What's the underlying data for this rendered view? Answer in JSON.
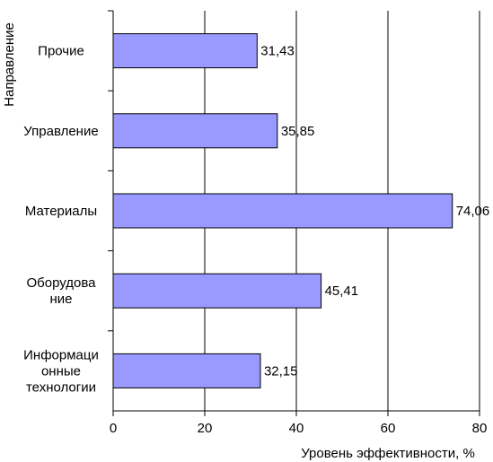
{
  "chart_data": {
    "type": "bar",
    "orientation": "horizontal",
    "categories": [
      "Информационные технологии",
      "Оборудование",
      "Материалы",
      "Управление",
      "Прочие"
    ],
    "category_labels": [
      [
        "Информаци",
        "онные",
        "технологии"
      ],
      [
        "Оборудова",
        "ние"
      ],
      [
        "Материалы"
      ],
      [
        "Управление"
      ],
      [
        "Прочие"
      ]
    ],
    "values": [
      32.15,
      45.41,
      74.06,
      35.85,
      31.43
    ],
    "data_labels": [
      "32,15",
      "45,41",
      "74,06",
      "35,85",
      "31,43"
    ],
    "xlim": [
      0,
      80
    ],
    "x_ticks": [
      0,
      20,
      40,
      60,
      80
    ],
    "x_tick_labels": [
      "0",
      "20",
      "40",
      "60",
      "80"
    ],
    "xlabel": "Уровень эффективности, %",
    "ylabel": "Направление",
    "grid": true,
    "bar_color": "#9999ff",
    "bar_edge_color": "#000000"
  }
}
